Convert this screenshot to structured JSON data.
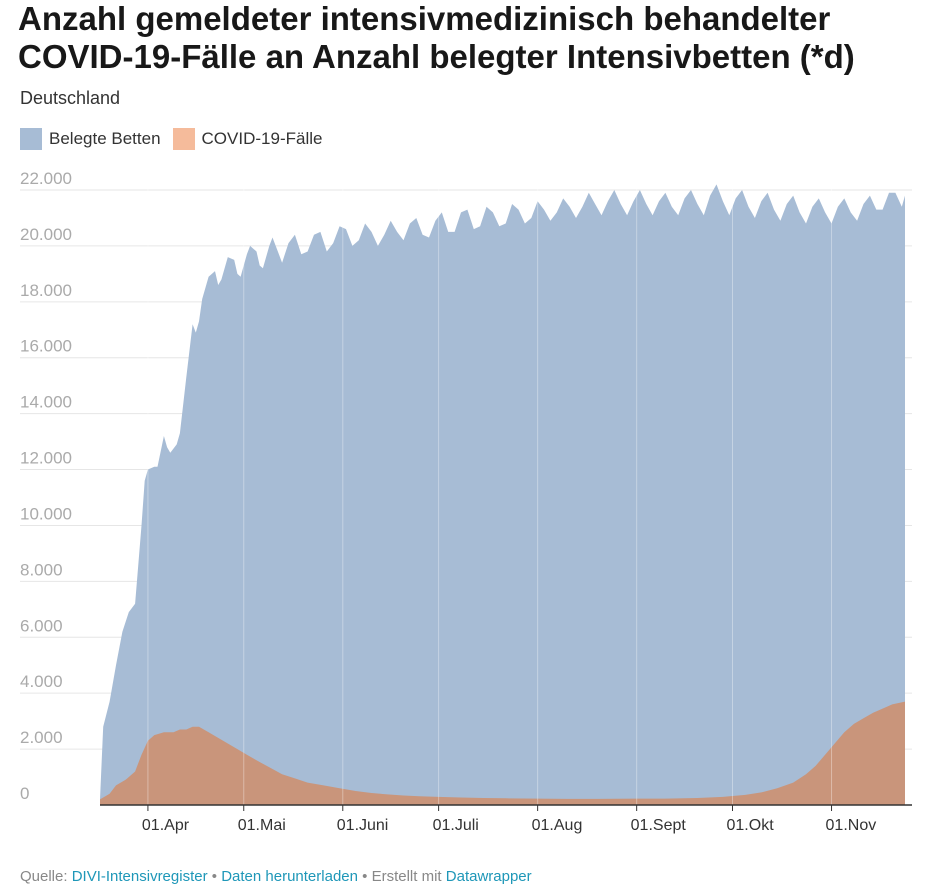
{
  "title": "Anzahl gemeldeter intensivmedizinisch behandelter COVID-19-Fälle an Anzahl belegter Intensivbetten (*d)",
  "subtitle": "Deutschland",
  "colors": {
    "beds": "#a7bcd5",
    "covid": "#c9957b",
    "covid_swatch": "#f5bb9b",
    "grid": "#e6e6e6",
    "axis_label": "#aaaaaa"
  },
  "footer": {
    "source_label": "Quelle:",
    "source_link": "DIVI-Intensivregister",
    "sep1": "•",
    "download_link": "Daten herunterladen",
    "sep2": "•",
    "created_text": "Erstellt mit",
    "tool_link": "Datawrapper"
  },
  "chart_data": {
    "type": "area",
    "title": "Anzahl gemeldeter intensivmedizinisch behandelter COVID-19-Fälle an Anzahl belegter Intensivbetten (*d)",
    "subtitle": "Deutschland",
    "x_start": "2020-03-17",
    "x_end": "2020-11-24",
    "ylim": [
      0,
      22000
    ],
    "y_ticks": [
      {
        "value": 0,
        "label": "0"
      },
      {
        "value": 2000,
        "label": "2.000"
      },
      {
        "value": 4000,
        "label": "4.000"
      },
      {
        "value": 6000,
        "label": "6.000"
      },
      {
        "value": 8000,
        "label": "8.000"
      },
      {
        "value": 10000,
        "label": "10.000"
      },
      {
        "value": 12000,
        "label": "12.000"
      },
      {
        "value": 14000,
        "label": "14.000"
      },
      {
        "value": 16000,
        "label": "16.000"
      },
      {
        "value": 18000,
        "label": "18.000"
      },
      {
        "value": 20000,
        "label": "20.000"
      },
      {
        "value": 22000,
        "label": "22.000"
      }
    ],
    "x_ticks": [
      {
        "date": "2020-04-01",
        "label": "01.Apr"
      },
      {
        "date": "2020-05-01",
        "label": "01.Mai"
      },
      {
        "date": "2020-06-01",
        "label": "01.Juni"
      },
      {
        "date": "2020-07-01",
        "label": "01.Juli"
      },
      {
        "date": "2020-08-01",
        "label": "01.Aug"
      },
      {
        "date": "2020-09-01",
        "label": "01.Sept"
      },
      {
        "date": "2020-10-01",
        "label": "01.Okt"
      },
      {
        "date": "2020-11-01",
        "label": "01.Nov"
      }
    ],
    "grid": true,
    "legend_position": "top-left",
    "series": [
      {
        "name": "Belegte Betten",
        "color": "#a7bcd5",
        "points": [
          [
            "2020-03-17",
            200
          ],
          [
            "2020-03-18",
            2800
          ],
          [
            "2020-03-20",
            3700
          ],
          [
            "2020-03-22",
            5000
          ],
          [
            "2020-03-24",
            6200
          ],
          [
            "2020-03-26",
            6900
          ],
          [
            "2020-03-28",
            7200
          ],
          [
            "2020-03-29",
            8600
          ],
          [
            "2020-03-30",
            10000
          ],
          [
            "2020-03-31",
            11600
          ],
          [
            "2020-04-01",
            12000
          ],
          [
            "2020-04-03",
            12100
          ],
          [
            "2020-04-04",
            12100
          ],
          [
            "2020-04-06",
            13200
          ],
          [
            "2020-04-07",
            12800
          ],
          [
            "2020-04-08",
            12600
          ],
          [
            "2020-04-10",
            12900
          ],
          [
            "2020-04-11",
            13300
          ],
          [
            "2020-04-13",
            15300
          ],
          [
            "2020-04-15",
            17200
          ],
          [
            "2020-04-16",
            16900
          ],
          [
            "2020-04-17",
            17300
          ],
          [
            "2020-04-18",
            18100
          ],
          [
            "2020-04-20",
            18900
          ],
          [
            "2020-04-22",
            19100
          ],
          [
            "2020-04-23",
            18600
          ],
          [
            "2020-04-24",
            18800
          ],
          [
            "2020-04-26",
            19600
          ],
          [
            "2020-04-28",
            19500
          ],
          [
            "2020-04-29",
            19000
          ],
          [
            "2020-04-30",
            18900
          ],
          [
            "2020-05-02",
            19700
          ],
          [
            "2020-05-03",
            20000
          ],
          [
            "2020-05-05",
            19800
          ],
          [
            "2020-05-06",
            19300
          ],
          [
            "2020-05-07",
            19200
          ],
          [
            "2020-05-09",
            20000
          ],
          [
            "2020-05-10",
            20300
          ],
          [
            "2020-05-12",
            19700
          ],
          [
            "2020-05-13",
            19400
          ],
          [
            "2020-05-15",
            20100
          ],
          [
            "2020-05-17",
            20400
          ],
          [
            "2020-05-19",
            19700
          ],
          [
            "2020-05-21",
            19800
          ],
          [
            "2020-05-23",
            20400
          ],
          [
            "2020-05-25",
            20500
          ],
          [
            "2020-05-27",
            19800
          ],
          [
            "2020-05-29",
            20100
          ],
          [
            "2020-05-31",
            20700
          ],
          [
            "2020-06-02",
            20600
          ],
          [
            "2020-06-04",
            20000
          ],
          [
            "2020-06-06",
            20200
          ],
          [
            "2020-06-08",
            20800
          ],
          [
            "2020-06-10",
            20500
          ],
          [
            "2020-06-12",
            20000
          ],
          [
            "2020-06-14",
            20400
          ],
          [
            "2020-06-16",
            20900
          ],
          [
            "2020-06-18",
            20500
          ],
          [
            "2020-06-20",
            20200
          ],
          [
            "2020-06-22",
            20800
          ],
          [
            "2020-06-24",
            21000
          ],
          [
            "2020-06-26",
            20400
          ],
          [
            "2020-06-28",
            20300
          ],
          [
            "2020-06-30",
            20900
          ],
          [
            "2020-07-02",
            21200
          ],
          [
            "2020-07-04",
            20500
          ],
          [
            "2020-07-06",
            20500
          ],
          [
            "2020-07-08",
            21200
          ],
          [
            "2020-07-10",
            21300
          ],
          [
            "2020-07-12",
            20600
          ],
          [
            "2020-07-14",
            20700
          ],
          [
            "2020-07-16",
            21400
          ],
          [
            "2020-07-18",
            21200
          ],
          [
            "2020-07-20",
            20700
          ],
          [
            "2020-07-22",
            20800
          ],
          [
            "2020-07-24",
            21500
          ],
          [
            "2020-07-26",
            21300
          ],
          [
            "2020-07-28",
            20800
          ],
          [
            "2020-07-30",
            21000
          ],
          [
            "2020-08-01",
            21600
          ],
          [
            "2020-08-03",
            21300
          ],
          [
            "2020-08-05",
            20900
          ],
          [
            "2020-08-07",
            21200
          ],
          [
            "2020-08-09",
            21700
          ],
          [
            "2020-08-11",
            21400
          ],
          [
            "2020-08-13",
            21000
          ],
          [
            "2020-08-15",
            21400
          ],
          [
            "2020-08-17",
            21900
          ],
          [
            "2020-08-19",
            21500
          ],
          [
            "2020-08-21",
            21100
          ],
          [
            "2020-08-23",
            21600
          ],
          [
            "2020-08-25",
            22000
          ],
          [
            "2020-08-27",
            21500
          ],
          [
            "2020-08-29",
            21100
          ],
          [
            "2020-08-31",
            21600
          ],
          [
            "2020-09-02",
            22000
          ],
          [
            "2020-09-04",
            21500
          ],
          [
            "2020-09-06",
            21100
          ],
          [
            "2020-09-08",
            21600
          ],
          [
            "2020-09-10",
            21900
          ],
          [
            "2020-09-12",
            21400
          ],
          [
            "2020-09-14",
            21100
          ],
          [
            "2020-09-16",
            21700
          ],
          [
            "2020-09-18",
            22000
          ],
          [
            "2020-09-20",
            21500
          ],
          [
            "2020-09-22",
            21100
          ],
          [
            "2020-09-24",
            21800
          ],
          [
            "2020-09-26",
            22200
          ],
          [
            "2020-09-28",
            21600
          ],
          [
            "2020-09-30",
            21100
          ],
          [
            "2020-10-02",
            21700
          ],
          [
            "2020-10-04",
            22000
          ],
          [
            "2020-10-06",
            21400
          ],
          [
            "2020-10-08",
            21000
          ],
          [
            "2020-10-10",
            21600
          ],
          [
            "2020-10-12",
            21900
          ],
          [
            "2020-10-14",
            21300
          ],
          [
            "2020-10-16",
            20900
          ],
          [
            "2020-10-18",
            21500
          ],
          [
            "2020-10-20",
            21800
          ],
          [
            "2020-10-22",
            21200
          ],
          [
            "2020-10-24",
            20800
          ],
          [
            "2020-10-26",
            21400
          ],
          [
            "2020-10-28",
            21700
          ],
          [
            "2020-10-30",
            21200
          ],
          [
            "2020-11-01",
            20800
          ],
          [
            "2020-11-03",
            21400
          ],
          [
            "2020-11-05",
            21700
          ],
          [
            "2020-11-07",
            21200
          ],
          [
            "2020-11-09",
            20900
          ],
          [
            "2020-11-11",
            21500
          ],
          [
            "2020-11-13",
            21800
          ],
          [
            "2020-11-15",
            21300
          ],
          [
            "2020-11-17",
            21300
          ],
          [
            "2020-11-19",
            21900
          ],
          [
            "2020-11-21",
            21900
          ],
          [
            "2020-11-23",
            21400
          ],
          [
            "2020-11-24",
            21800
          ]
        ]
      },
      {
        "name": "COVID-19-Fälle",
        "color": "#f5bb9b",
        "points": [
          [
            "2020-03-17",
            200
          ],
          [
            "2020-03-20",
            400
          ],
          [
            "2020-03-22",
            700
          ],
          [
            "2020-03-25",
            900
          ],
          [
            "2020-03-28",
            1200
          ],
          [
            "2020-03-30",
            1800
          ],
          [
            "2020-04-01",
            2300
          ],
          [
            "2020-04-03",
            2500
          ],
          [
            "2020-04-06",
            2600
          ],
          [
            "2020-04-09",
            2600
          ],
          [
            "2020-04-11",
            2700
          ],
          [
            "2020-04-13",
            2700
          ],
          [
            "2020-04-15",
            2800
          ],
          [
            "2020-04-17",
            2800
          ],
          [
            "2020-04-20",
            2600
          ],
          [
            "2020-04-23",
            2400
          ],
          [
            "2020-04-26",
            2200
          ],
          [
            "2020-04-29",
            2000
          ],
          [
            "2020-05-02",
            1800
          ],
          [
            "2020-05-05",
            1600
          ],
          [
            "2020-05-09",
            1350
          ],
          [
            "2020-05-13",
            1100
          ],
          [
            "2020-05-17",
            950
          ],
          [
            "2020-05-21",
            800
          ],
          [
            "2020-05-26",
            700
          ],
          [
            "2020-05-31",
            600
          ],
          [
            "2020-06-05",
            500
          ],
          [
            "2020-06-10",
            430
          ],
          [
            "2020-06-15",
            380
          ],
          [
            "2020-06-20",
            340
          ],
          [
            "2020-06-25",
            310
          ],
          [
            "2020-07-01",
            290
          ],
          [
            "2020-07-08",
            270
          ],
          [
            "2020-07-15",
            250
          ],
          [
            "2020-07-22",
            240
          ],
          [
            "2020-08-01",
            230
          ],
          [
            "2020-08-10",
            220
          ],
          [
            "2020-08-20",
            220
          ],
          [
            "2020-09-01",
            230
          ],
          [
            "2020-09-10",
            230
          ],
          [
            "2020-09-20",
            250
          ],
          [
            "2020-09-28",
            290
          ],
          [
            "2020-10-05",
            360
          ],
          [
            "2020-10-10",
            450
          ],
          [
            "2020-10-15",
            600
          ],
          [
            "2020-10-20",
            800
          ],
          [
            "2020-10-24",
            1100
          ],
          [
            "2020-10-27",
            1400
          ],
          [
            "2020-10-30",
            1800
          ],
          [
            "2020-11-02",
            2200
          ],
          [
            "2020-11-05",
            2600
          ],
          [
            "2020-11-08",
            2900
          ],
          [
            "2020-11-11",
            3100
          ],
          [
            "2020-11-14",
            3300
          ],
          [
            "2020-11-17",
            3450
          ],
          [
            "2020-11-20",
            3600
          ],
          [
            "2020-11-22",
            3650
          ],
          [
            "2020-11-24",
            3700
          ]
        ]
      }
    ]
  }
}
